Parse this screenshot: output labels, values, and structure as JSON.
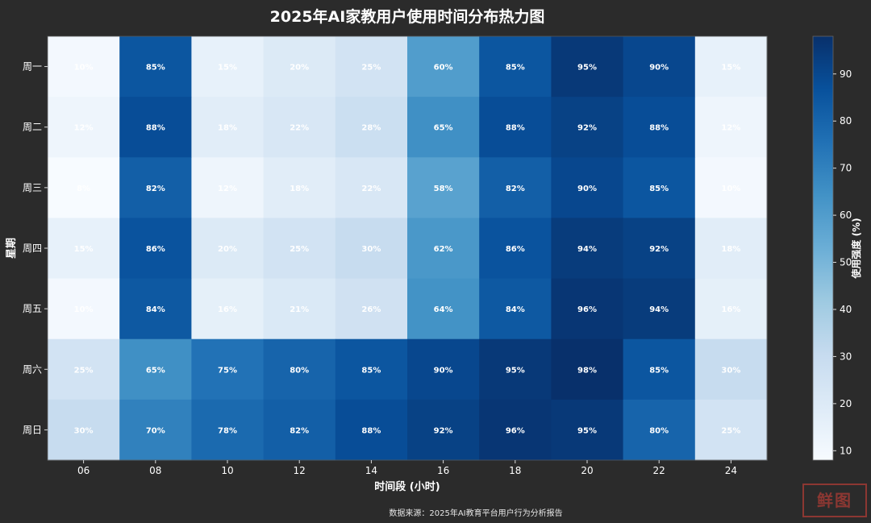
{
  "chart_data": {
    "type": "heatmap",
    "title": "2025年AI家教用户使用时间分布热力图",
    "xlabel": "时间段 (小时)",
    "ylabel": "星期",
    "x_categories": [
      "06",
      "08",
      "10",
      "12",
      "14",
      "16",
      "18",
      "20",
      "22",
      "24"
    ],
    "y_categories": [
      "周一",
      "周二",
      "周三",
      "周四",
      "周五",
      "周六",
      "周日"
    ],
    "values": [
      [
        10,
        85,
        15,
        20,
        25,
        60,
        85,
        95,
        90,
        15
      ],
      [
        12,
        88,
        18,
        22,
        28,
        65,
        88,
        92,
        88,
        12
      ],
      [
        8,
        82,
        12,
        18,
        22,
        58,
        82,
        90,
        85,
        10
      ],
      [
        15,
        86,
        20,
        25,
        30,
        62,
        86,
        94,
        92,
        18
      ],
      [
        10,
        84,
        16,
        21,
        26,
        64,
        84,
        96,
        94,
        16
      ],
      [
        25,
        65,
        75,
        80,
        85,
        90,
        95,
        98,
        85,
        30
      ],
      [
        30,
        70,
        78,
        82,
        88,
        92,
        96,
        95,
        80,
        25
      ]
    ],
    "value_suffix": "%",
    "colorbar": {
      "label": "使用强度 (%)",
      "min": 8,
      "max": 98,
      "ticks": [
        10,
        20,
        30,
        40,
        50,
        60,
        70,
        80,
        90
      ],
      "colormap": "Blues"
    }
  },
  "footer": {
    "source": "数据来源：2025年AI教育平台用户行为分析报告",
    "stamp": "鲜图"
  }
}
